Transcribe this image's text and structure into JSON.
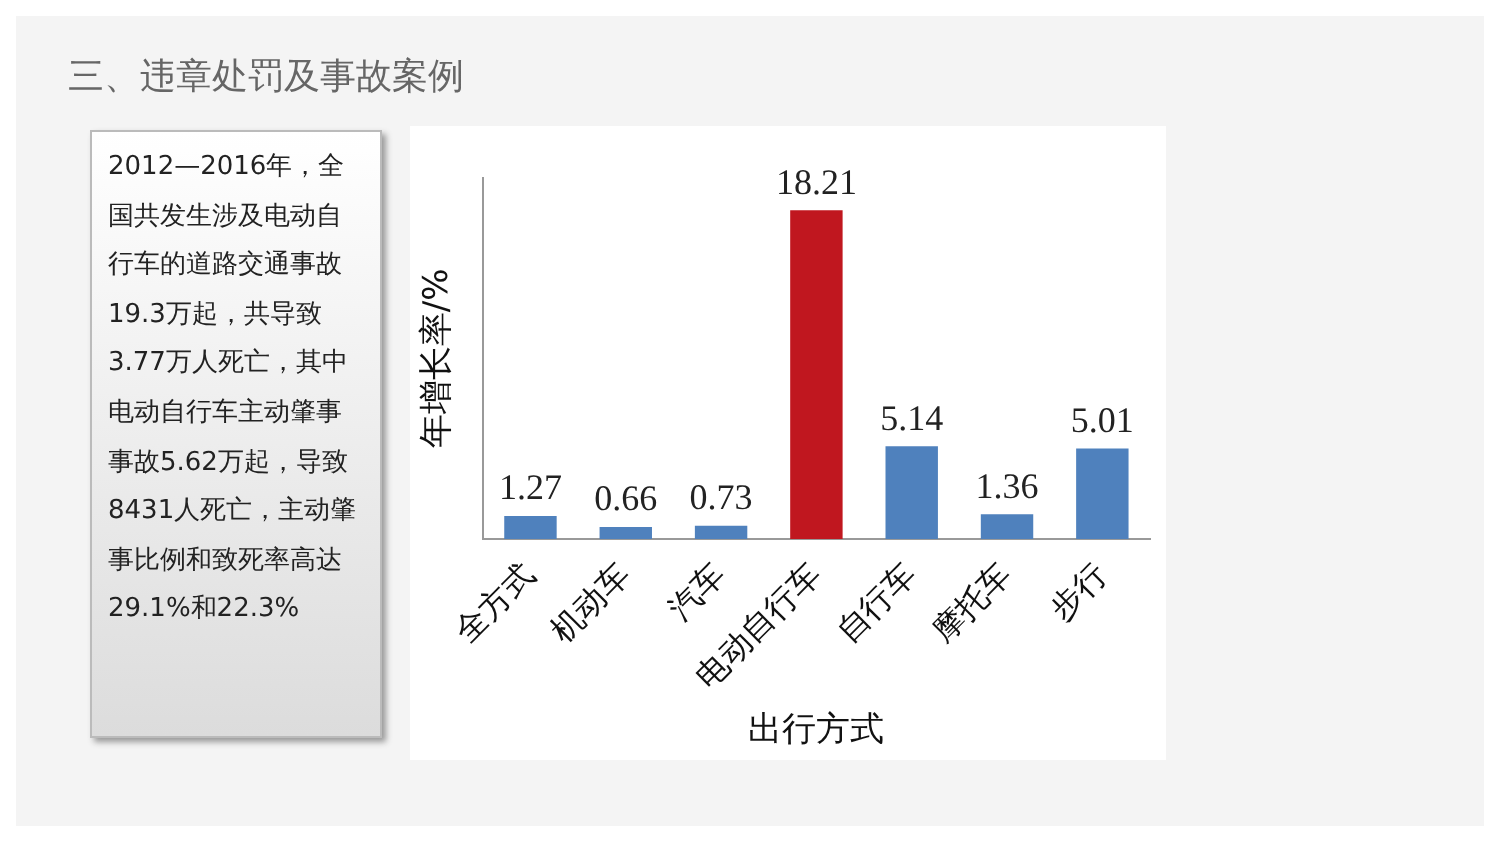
{
  "chart_data": {
    "type": "bar",
    "title": "三、违章处罚及事故案例",
    "xlabel": "出行方式",
    "ylabel": "年增长率/%",
    "categories": [
      "全方式",
      "机动车",
      "汽车",
      "电动自行车",
      "自行车",
      "摩托车",
      "步行"
    ],
    "values": [
      1.27,
      0.66,
      0.73,
      18.21,
      5.14,
      1.36,
      5.01
    ],
    "colors": [
      "#4f81bd",
      "#4f81bd",
      "#4f81bd",
      "#c0171f",
      "#4f81bd",
      "#4f81bd",
      "#4f81bd"
    ],
    "data_labels": true,
    "grid": false,
    "legend": false,
    "tick_labels": "x",
    "annotations": [
      "2012—2016年，全国共发生涉及电动自行车的道路交通事故19.3万起，共导致3.77万人死亡，其中电动自行车主动肇事事故5.62万起，导致8431人死亡，主动肇事比例和致死率高达29.1%和22.3%"
    ]
  }
}
